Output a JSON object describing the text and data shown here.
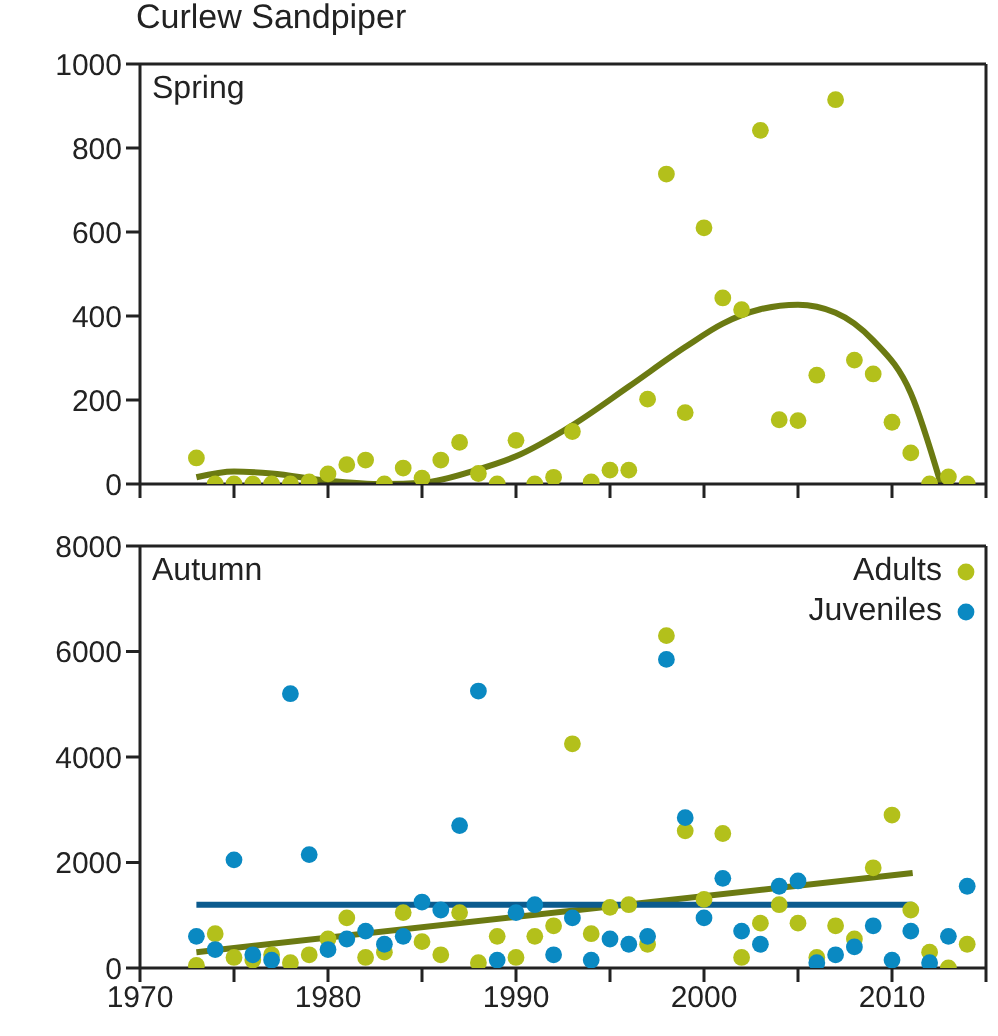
{
  "chart_data": [
    {
      "type": "scatter",
      "title": "Curlew Sandpiper",
      "annotations": [
        "Spring"
      ],
      "xlim": [
        1970,
        2015
      ],
      "xticks": [
        1970,
        {
          "value": 1975,
          "label": null
        },
        1980,
        {
          "value": 1985,
          "label": null
        },
        1990,
        {
          "value": 1995,
          "label": null
        },
        2000,
        {
          "value": 2005,
          "label": null
        },
        2010,
        {
          "value": 2015,
          "label": null
        }
      ],
      "ylim": [
        0,
        1000
      ],
      "yticks": [
        0,
        200,
        400,
        600,
        800,
        1000
      ],
      "tick_labels": "y",
      "legend": false,
      "marker": "circle",
      "series": [
        {
          "color": "#b3c01b",
          "x": [
            1973,
            1974,
            1975,
            1976,
            1977,
            1978,
            1979,
            1980,
            1981,
            1982,
            1983,
            1984,
            1985,
            1986,
            1987,
            1988,
            1989,
            1990,
            1991,
            1992,
            1993,
            1994,
            1995,
            1996,
            1997,
            1998,
            1999,
            2000,
            2001,
            2002,
            2003,
            2004,
            2005,
            2006,
            2007,
            2008,
            2009,
            2010,
            2011,
            2012,
            2013,
            2014
          ],
          "values": [
            62,
            0,
            0,
            0,
            0,
            0,
            5,
            24,
            46,
            57,
            0,
            38,
            14,
            57,
            99,
            25,
            0,
            104,
            0,
            16,
            125,
            5,
            33,
            33,
            202,
            738,
            170,
            610,
            443,
            415,
            842,
            153,
            151,
            259,
            915,
            295,
            262,
            147,
            74,
            0,
            17,
            0
          ]
        },
        {
          "type": "line",
          "color": "#6b7a12",
          "marker": "none",
          "x": [
            1973,
            1975,
            1977,
            1980,
            1983,
            1985,
            1988,
            1990,
            1993,
            1996,
            1999,
            2001,
            2003,
            2005,
            2007,
            2009,
            2011,
            2012.6
          ],
          "values": [
            16,
            30,
            25,
            8,
            0,
            3,
            35,
            66,
            140,
            232,
            326,
            382,
            416,
            427,
            408,
            342,
            216,
            0
          ]
        }
      ]
    },
    {
      "type": "scatter",
      "annotations": [
        "Autumn"
      ],
      "xlim": [
        1970,
        2015
      ],
      "xticks": [
        1970,
        {
          "value": 1975,
          "label": null
        },
        1980,
        {
          "value": 1985,
          "label": null
        },
        1990,
        {
          "value": 1995,
          "label": null
        },
        2000,
        {
          "value": 2005,
          "label": null
        },
        2010,
        {
          "value": 2015,
          "label": null
        }
      ],
      "ylim": [
        0,
        8000
      ],
      "yticks": [
        0,
        2000,
        4000,
        6000,
        8000
      ],
      "legend": "top right",
      "marker": "circle",
      "series": [
        {
          "name": "Adults",
          "color": "#b3c01b",
          "x": [
            1973,
            1974,
            1975,
            1976,
            1977,
            1978,
            1979,
            1980,
            1981,
            1982,
            1983,
            1984,
            1985,
            1986,
            1987,
            1988,
            1989,
            1990,
            1991,
            1992,
            1993,
            1994,
            1995,
            1996,
            1997,
            1998,
            1999,
            2000,
            2001,
            2002,
            2003,
            2004,
            2005,
            2006,
            2007,
            2008,
            2009,
            2010,
            2011,
            2012,
            2013,
            2014
          ],
          "values": [
            50,
            650,
            200,
            150,
            250,
            100,
            250,
            550,
            950,
            200,
            300,
            1050,
            500,
            250,
            1050,
            100,
            600,
            200,
            600,
            800,
            4250,
            650,
            1150,
            1200,
            450,
            6300,
            2600,
            1300,
            2550,
            200,
            850,
            1200,
            850,
            200,
            800,
            550,
            1900,
            2900,
            1100,
            300,
            0,
            450
          ]
        },
        {
          "name": "Juveniles",
          "color": "#0a89c2",
          "x": [
            1973,
            1974,
            1975,
            1976,
            1977,
            1978,
            1979,
            1980,
            1981,
            1982,
            1983,
            1984,
            1985,
            1986,
            1987,
            1988,
            1989,
            1990,
            1991,
            1992,
            1993,
            1994,
            1995,
            1996,
            1997,
            1998,
            1999,
            2000,
            2001,
            2002,
            2003,
            2004,
            2005,
            2006,
            2007,
            2008,
            2009,
            2010,
            2011,
            2012,
            2013,
            2014
          ],
          "values": [
            600,
            350,
            2050,
            250,
            150,
            5200,
            2150,
            350,
            550,
            700,
            450,
            600,
            1250,
            1100,
            2700,
            5250,
            150,
            1050,
            1200,
            250,
            950,
            150,
            550,
            450,
            600,
            5850,
            2850,
            950,
            1700,
            700,
            450,
            1550,
            1650,
            100,
            250,
            400,
            800,
            150,
            700,
            100,
            600,
            1550
          ]
        },
        {
          "type": "line",
          "color": "#6b7a12",
          "marker": "none",
          "x": [
            1973,
            2011.1
          ],
          "values": [
            300,
            1800
          ]
        },
        {
          "type": "line",
          "color": "#0b5b8e",
          "marker": "none",
          "x": [
            1973,
            2011.1
          ],
          "values": [
            1200,
            1200
          ]
        }
      ]
    }
  ]
}
